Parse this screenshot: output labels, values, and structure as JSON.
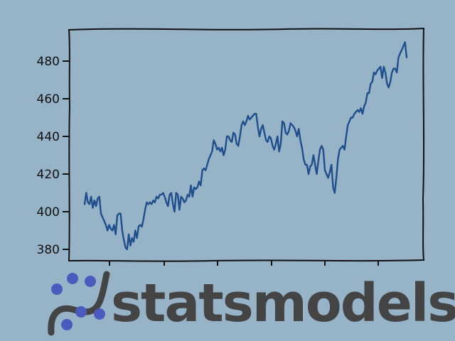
{
  "chart_data": {
    "type": "line",
    "title": "",
    "xlabel": "",
    "ylabel": "",
    "ylim": [
      375,
      496
    ],
    "yticks": [
      380,
      400,
      420,
      440,
      460,
      480
    ],
    "x_tick_labels": [
      "",
      "",
      "",
      "",
      "",
      ""
    ],
    "grid": false,
    "series": [
      {
        "color": "#1f4e8c",
        "values": [
          404,
          410,
          405,
          404,
          408,
          402,
          406,
          403,
          407,
          408,
          399,
          397,
          395,
          393,
          390,
          393,
          391,
          390,
          393,
          388,
          398,
          399,
          399,
          390,
          385,
          381,
          380,
          388,
          382,
          386,
          384,
          390,
          386,
          392,
          393,
          392,
          396,
          401,
          405,
          404,
          405,
          404,
          406,
          405,
          408,
          407,
          409,
          409,
          410,
          408,
          405,
          403,
          409,
          410,
          404,
          400,
          410,
          409,
          401,
          408,
          407,
          405,
          406,
          409,
          408,
          414,
          408,
          413,
          412,
          413,
          416,
          414,
          422,
          423,
          422,
          425,
          428,
          430,
          432,
          438,
          436,
          433,
          434,
          432,
          434,
          430,
          433,
          440,
          440,
          438,
          437,
          442,
          441,
          436,
          435,
          440,
          446,
          448,
          446,
          448,
          451,
          449,
          450,
          451,
          452,
          452,
          445,
          440,
          444,
          446,
          442,
          438,
          437,
          440,
          439,
          435,
          433,
          436,
          440,
          432,
          436,
          448,
          447,
          442,
          441,
          443,
          447,
          446,
          445,
          443,
          440,
          444,
          438,
          434,
          428,
          425,
          425,
          420,
          424,
          425,
          430,
          425,
          420,
          427,
          433,
          435,
          433,
          422,
          420,
          418,
          421,
          425,
          413,
          410,
          418,
          428,
          433,
          434,
          435,
          433,
          440,
          446,
          448,
          450,
          450,
          452,
          453,
          454,
          453,
          455,
          452,
          456,
          458,
          463,
          463,
          468,
          469,
          474,
          473,
          475,
          476,
          477,
          471,
          477,
          474,
          468,
          466,
          469,
          474,
          476,
          476,
          474,
          482,
          484,
          486,
          488,
          490,
          482
        ]
      }
    ]
  },
  "logo": {
    "text": "statsmodels",
    "colors": {
      "dots": "#4a5bbd",
      "curve": "#444444",
      "text": "#444444"
    }
  },
  "colors": {
    "background": "#97b3c8",
    "line": "#1f4e8c",
    "frame": "#111111"
  }
}
